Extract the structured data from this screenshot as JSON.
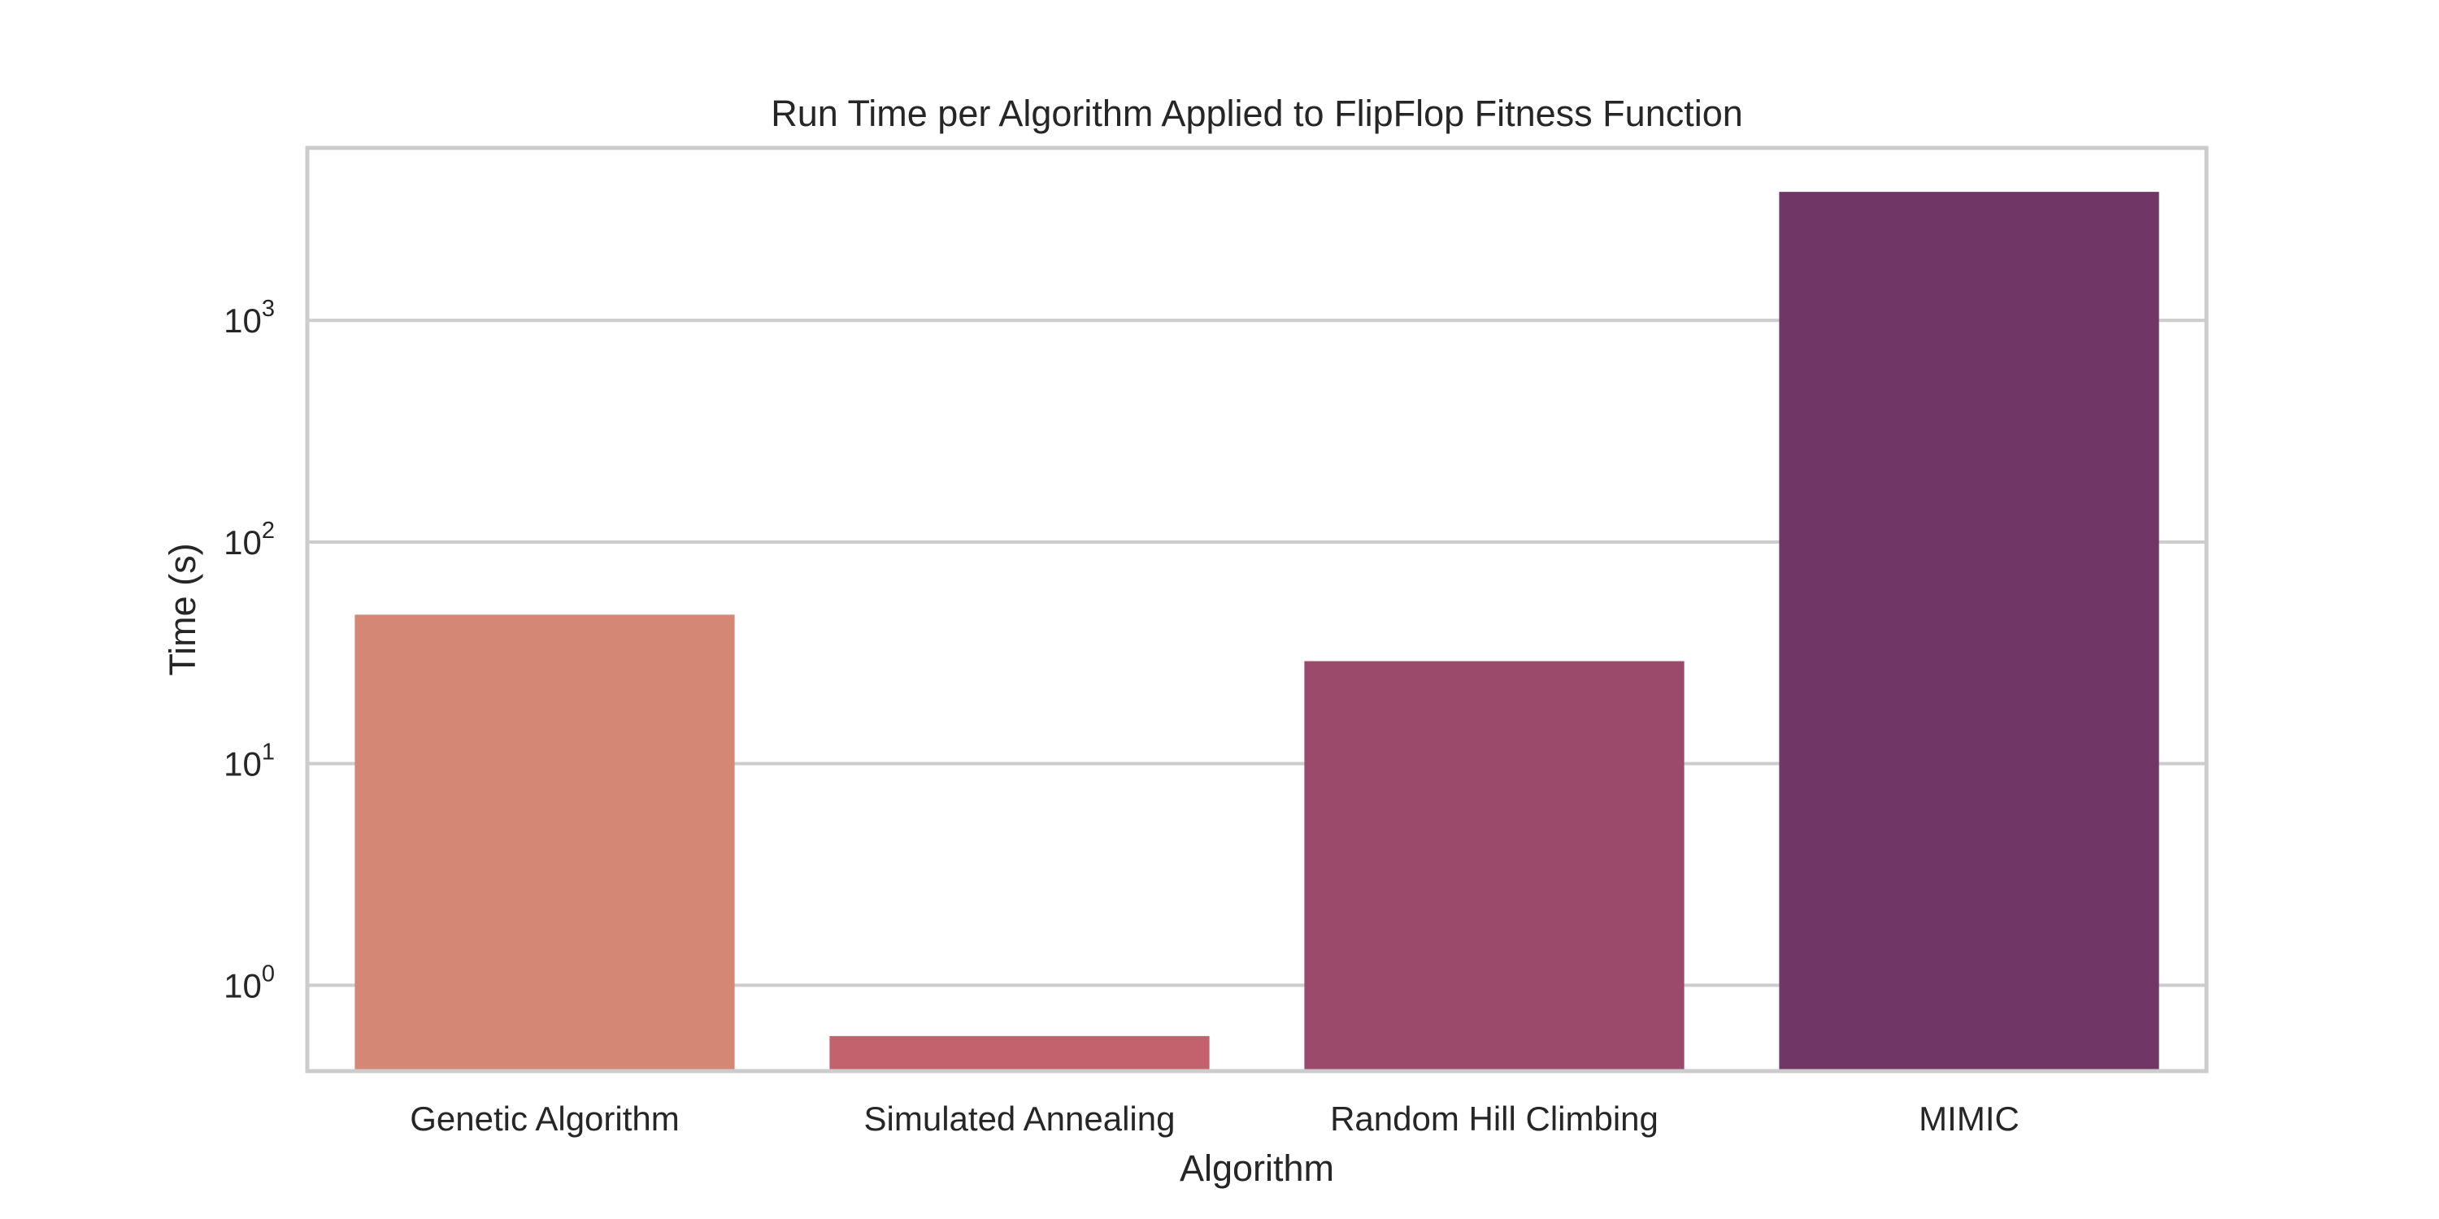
{
  "chart_data": {
    "type": "bar",
    "title": "Run Time per Algorithm Applied to FlipFlop Fitness Function",
    "xlabel": "Algorithm",
    "ylabel": "Time (s)",
    "yscale": "log",
    "ylim": [
      0.41,
      6000
    ],
    "yticks": [
      {
        "value": 1,
        "base": "10",
        "exp": "0"
      },
      {
        "value": 10,
        "base": "10",
        "exp": "1"
      },
      {
        "value": 100,
        "base": "10",
        "exp": "2"
      },
      {
        "value": 1000,
        "base": "10",
        "exp": "3"
      }
    ],
    "grid": "horizontal",
    "categories": [
      "Genetic Algorithm",
      "Simulated Annealing",
      "Random Hill Climbing",
      "MIMIC"
    ],
    "values": [
      47,
      0.59,
      29,
      3800
    ],
    "colors": [
      "#d58775",
      "#c3616c",
      "#9c4a6c",
      "#703665"
    ]
  }
}
